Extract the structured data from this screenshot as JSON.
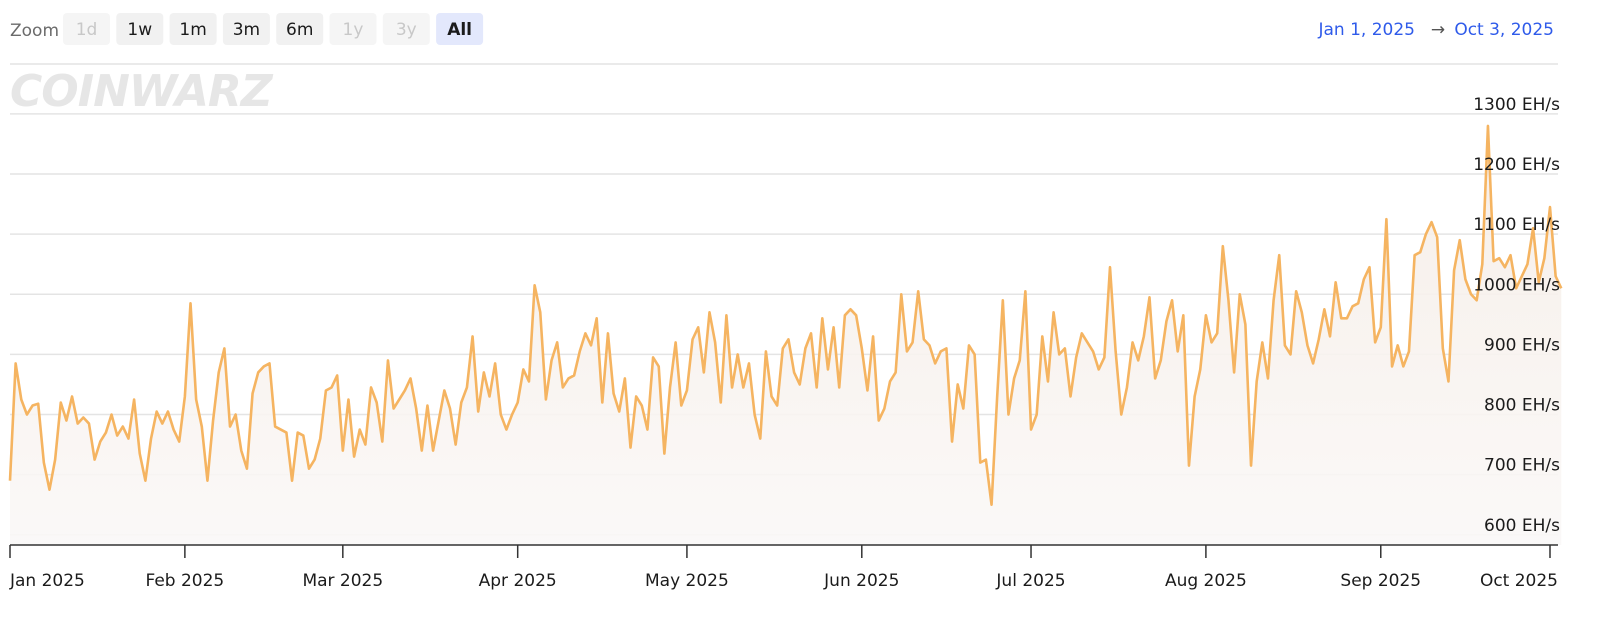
{
  "zoom": {
    "label": "Zoom",
    "buttons": [
      {
        "label": "1d",
        "enabled": false,
        "active": false
      },
      {
        "label": "1w",
        "enabled": true,
        "active": false
      },
      {
        "label": "1m",
        "enabled": true,
        "active": false
      },
      {
        "label": "3m",
        "enabled": true,
        "active": false
      },
      {
        "label": "6m",
        "enabled": true,
        "active": false
      },
      {
        "label": "1y",
        "enabled": false,
        "active": false
      },
      {
        "label": "3y",
        "enabled": false,
        "active": false
      },
      {
        "label": "All",
        "enabled": true,
        "active": true
      }
    ]
  },
  "range": {
    "from": "Jan 1, 2025",
    "arrow": "→",
    "to": "Oct 3, 2025"
  },
  "watermark": "COINWARZ",
  "chart_data": {
    "type": "line",
    "color": "#f5b461",
    "grid": true,
    "xlim": [
      0,
      275
    ],
    "xticks": [
      {
        "value": 0,
        "label": "Jan 2025"
      },
      {
        "value": 31,
        "label": "Feb 2025"
      },
      {
        "value": 59,
        "label": "Mar 2025"
      },
      {
        "value": 90,
        "label": "Apr 2025"
      },
      {
        "value": 120,
        "label": "May 2025"
      },
      {
        "value": 151,
        "label": "Jun 2025"
      },
      {
        "value": 181,
        "label": "Jul 2025"
      },
      {
        "value": 212,
        "label": "Aug 2025"
      },
      {
        "value": 243,
        "label": "Sep 2025"
      },
      {
        "value": 273,
        "label": "Oct 2025"
      }
    ],
    "ylim": [
      583,
      1383
    ],
    "yticks": [
      {
        "value": 600,
        "label": "600 EH/s"
      },
      {
        "value": 700,
        "label": "700 EH/s"
      },
      {
        "value": 800,
        "label": "800 EH/s"
      },
      {
        "value": 900,
        "label": "900 EH/s"
      },
      {
        "value": 1000,
        "label": "1000 EH/s"
      },
      {
        "value": 1100,
        "label": "1100 EH/s"
      },
      {
        "value": 1200,
        "label": "1200 EH/s"
      },
      {
        "value": 1300,
        "label": "1300 EH/s"
      }
    ],
    "values": [
      690,
      885,
      825,
      800,
      815,
      818,
      720,
      675,
      725,
      820,
      790,
      830,
      785,
      795,
      785,
      725,
      755,
      770,
      800,
      765,
      780,
      760,
      825,
      735,
      690,
      760,
      805,
      785,
      805,
      775,
      755,
      830,
      985,
      825,
      780,
      690,
      790,
      870,
      910,
      780,
      800,
      740,
      710,
      835,
      870,
      880,
      885,
      780,
      775,
      770,
      690,
      770,
      765,
      710,
      725,
      760,
      840,
      845,
      865,
      740,
      825,
      730,
      775,
      750,
      845,
      820,
      755,
      890,
      810,
      825,
      840,
      860,
      810,
      740,
      815,
      740,
      790,
      840,
      810,
      750,
      820,
      845,
      930,
      805,
      870,
      830,
      885,
      800,
      775,
      800,
      820,
      875,
      855,
      1015,
      970,
      825,
      890,
      920,
      845,
      860,
      865,
      905,
      935,
      915,
      960,
      820,
      935,
      835,
      805,
      860,
      745,
      830,
      815,
      775,
      895,
      880,
      735,
      845,
      920,
      815,
      840,
      925,
      945,
      870,
      970,
      920,
      820,
      965,
      845,
      900,
      845,
      885,
      800,
      760,
      905,
      830,
      815,
      910,
      925,
      870,
      850,
      910,
      935,
      845,
      960,
      875,
      945,
      845,
      965,
      975,
      965,
      910,
      840,
      930,
      790,
      810,
      855,
      870,
      1000,
      905,
      920,
      1005,
      925,
      915,
      885,
      905,
      910,
      755,
      850,
      810,
      915,
      900,
      720,
      725,
      650,
      830,
      990,
      800,
      860,
      890,
      1005,
      775,
      800,
      930,
      855,
      970,
      900,
      910,
      830,
      895,
      935,
      920,
      905,
      875,
      895,
      1045,
      905,
      800,
      845,
      920,
      890,
      930,
      995,
      860,
      890,
      955,
      990,
      905,
      965,
      715,
      830,
      875,
      965,
      920,
      935,
      1080,
      990,
      870,
      1000,
      950,
      715,
      855,
      920,
      860,
      990,
      1065,
      915,
      900,
      1005,
      970,
      915,
      885,
      925,
      975,
      930,
      1020,
      960,
      960,
      980,
      985,
      1025,
      1045,
      920,
      945,
      1125,
      880,
      915,
      880,
      905,
      1065,
      1070,
      1100,
      1120,
      1095,
      910,
      855,
      1040,
      1090,
      1025,
      1000,
      990,
      1050,
      1280,
      1055,
      1060,
      1045,
      1065,
      1010,
      1030,
      1050,
      1110,
      1020,
      1060,
      1145,
      1030,
      1010
    ]
  }
}
